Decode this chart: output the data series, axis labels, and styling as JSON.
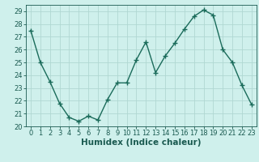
{
  "x": [
    0,
    1,
    2,
    3,
    4,
    5,
    6,
    7,
    8,
    9,
    10,
    11,
    12,
    13,
    14,
    15,
    16,
    17,
    18,
    19,
    20,
    21,
    22,
    23
  ],
  "y": [
    27.5,
    25.0,
    23.5,
    21.8,
    20.7,
    20.4,
    20.8,
    20.5,
    22.1,
    23.4,
    23.4,
    25.2,
    26.6,
    24.2,
    25.5,
    26.5,
    27.6,
    28.6,
    29.1,
    28.7,
    26.0,
    25.0,
    23.2,
    21.7
  ],
  "line_color": "#1a6b5a",
  "marker": "+",
  "markersize": 4,
  "markeredgewidth": 1.0,
  "linewidth": 1.0,
  "bg_color": "#cff0ec",
  "grid_color": "#b0d8d2",
  "xlabel": "Humidex (Indice chaleur)",
  "xlim": [
    -0.5,
    23.5
  ],
  "ylim": [
    20,
    29.5
  ],
  "yticks": [
    20,
    21,
    22,
    23,
    24,
    25,
    26,
    27,
    28,
    29
  ],
  "xticks": [
    0,
    1,
    2,
    3,
    4,
    5,
    6,
    7,
    8,
    9,
    10,
    11,
    12,
    13,
    14,
    15,
    16,
    17,
    18,
    19,
    20,
    21,
    22,
    23
  ],
  "tick_fontsize": 6.0,
  "xlabel_fontsize": 7.5,
  "tick_color": "#1a5a50",
  "line_text_color": "#1a5a50"
}
